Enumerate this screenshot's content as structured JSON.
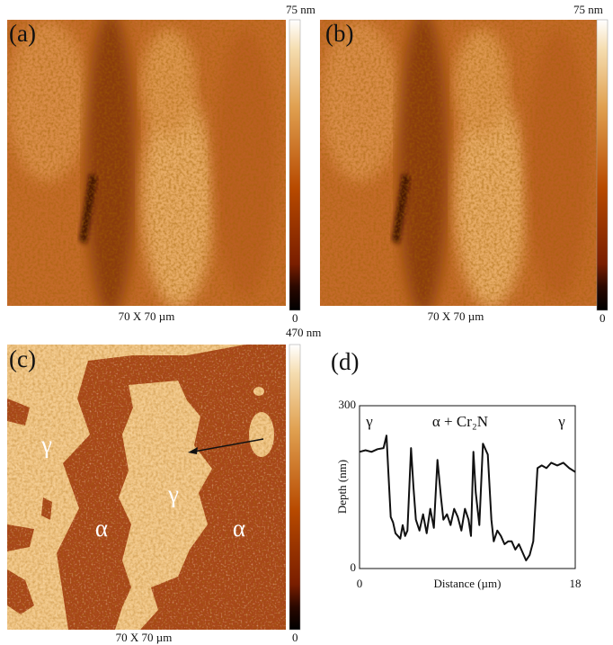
{
  "panels": [
    {
      "label": "(a)",
      "scale": "70 X 70 µm",
      "colorbar": {
        "max": "75 nm",
        "min": "0"
      }
    },
    {
      "label": "(b)",
      "scale": "70 X 70 µm",
      "colorbar": {
        "max": "75 nm",
        "min": "0"
      }
    },
    {
      "label": "(c)",
      "scale": "70 X 70 µm",
      "colorbar": {
        "max": "470 nm",
        "min": "0"
      },
      "annotations": [
        "γ",
        "γ",
        "α",
        "α"
      ]
    }
  ],
  "chart_data": {
    "type": "line",
    "panel_label": "(d)",
    "x_label": "Distance (µm)",
    "y_label": "Depth (nm)",
    "annotations": [
      "γ",
      "α + Cr₂N",
      "γ"
    ],
    "x": [
      0,
      0.5,
      1,
      1.5,
      2,
      2.25,
      2.4,
      2.6,
      2.8,
      3.0,
      3.2,
      3.4,
      3.6,
      3.8,
      4.0,
      4.3,
      4.5,
      4.7,
      5.0,
      5.3,
      5.6,
      5.9,
      6.2,
      6.5,
      6.8,
      7.0,
      7.3,
      7.6,
      7.9,
      8.2,
      8.5,
      8.8,
      9.1,
      9.3,
      9.5,
      9.7,
      10.0,
      10.3,
      10.7,
      11.0,
      11.2,
      11.5,
      11.8,
      12.1,
      12.4,
      12.7,
      13.0,
      13.3,
      13.6,
      13.9,
      14.2,
      14.5,
      14.85,
      15.2,
      15.6,
      16.0,
      16.5,
      17.0,
      17.5,
      18
    ],
    "values": [
      215,
      218,
      215,
      220,
      222,
      245,
      180,
      95,
      85,
      65,
      60,
      55,
      80,
      60,
      70,
      222,
      150,
      90,
      70,
      100,
      65,
      110,
      75,
      200,
      130,
      90,
      100,
      80,
      110,
      95,
      70,
      110,
      90,
      60,
      215,
      140,
      80,
      230,
      210,
      90,
      50,
      70,
      60,
      45,
      50,
      50,
      35,
      45,
      30,
      15,
      25,
      50,
      185,
      190,
      185,
      195,
      190,
      195,
      185,
      178
    ],
    "color": "#111111",
    "xlim": [
      0,
      18
    ],
    "ylim": [
      0,
      300
    ],
    "xticks": [
      0,
      18
    ],
    "yticks": [
      0,
      300
    ]
  }
}
